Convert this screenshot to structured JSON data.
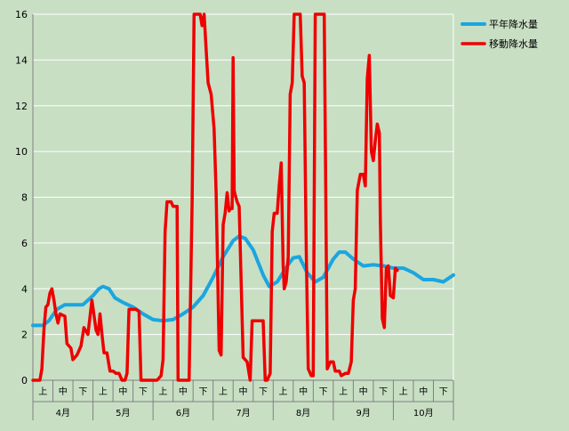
{
  "chart_data": {
    "type": "line",
    "ylim": [
      0,
      16
    ],
    "yticks": [
      0,
      2,
      4,
      6,
      8,
      10,
      12,
      14,
      16
    ],
    "grid": true,
    "legend_position": "top-right",
    "months": [
      "4月",
      "5月",
      "6月",
      "7月",
      "8月",
      "9月",
      "10月"
    ],
    "subperiods": [
      "上",
      "中",
      "下"
    ],
    "colors": {
      "background": "#c8dfc4",
      "grid": "#ffffff",
      "axis": "#808080"
    },
    "series": [
      {
        "name": "平年降水量",
        "color": "#1aa6e0",
        "values": [
          [
            0.0,
            2.4
          ],
          [
            0.5,
            2.4
          ],
          [
            0.8,
            2.6
          ],
          [
            1.2,
            3.1
          ],
          [
            1.6,
            3.3
          ],
          [
            2.0,
            3.3
          ],
          [
            2.5,
            3.3
          ],
          [
            3.0,
            3.7
          ],
          [
            3.3,
            4.0
          ],
          [
            3.5,
            4.1
          ],
          [
            3.8,
            4.0
          ],
          [
            4.1,
            3.6
          ],
          [
            4.5,
            3.4
          ],
          [
            5.0,
            3.2
          ],
          [
            5.5,
            2.9
          ],
          [
            6.0,
            2.65
          ],
          [
            6.5,
            2.6
          ],
          [
            7.0,
            2.65
          ],
          [
            7.5,
            2.9
          ],
          [
            8.0,
            3.2
          ],
          [
            8.5,
            3.7
          ],
          [
            9.0,
            4.5
          ],
          [
            9.5,
            5.4
          ],
          [
            10.0,
            6.1
          ],
          [
            10.3,
            6.3
          ],
          [
            10.6,
            6.2
          ],
          [
            11.0,
            5.7
          ],
          [
            11.5,
            4.6
          ],
          [
            11.8,
            4.1
          ],
          [
            12.2,
            4.3
          ],
          [
            12.7,
            5.0
          ],
          [
            13.0,
            5.35
          ],
          [
            13.3,
            5.4
          ],
          [
            13.7,
            4.7
          ],
          [
            14.1,
            4.3
          ],
          [
            14.5,
            4.5
          ],
          [
            15.0,
            5.3
          ],
          [
            15.3,
            5.6
          ],
          [
            15.6,
            5.6
          ],
          [
            16.0,
            5.3
          ],
          [
            16.5,
            5.0
          ],
          [
            17.0,
            5.05
          ],
          [
            17.5,
            5.0
          ],
          [
            18.0,
            4.9
          ],
          [
            18.5,
            4.9
          ],
          [
            19.0,
            4.7
          ],
          [
            19.5,
            4.4
          ],
          [
            20.0,
            4.4
          ],
          [
            20.5,
            4.3
          ],
          [
            21.0,
            4.6
          ]
        ]
      },
      {
        "name": "移動降水量",
        "color": "#ee0000",
        "values": [
          [
            0.0,
            0.0
          ],
          [
            0.35,
            0.0
          ],
          [
            0.45,
            0.5
          ],
          [
            0.55,
            2.2
          ],
          [
            0.65,
            3.2
          ],
          [
            0.75,
            3.3
          ],
          [
            0.85,
            3.8
          ],
          [
            0.95,
            4.0
          ],
          [
            1.05,
            3.5
          ],
          [
            1.15,
            2.9
          ],
          [
            1.25,
            2.5
          ],
          [
            1.35,
            2.9
          ],
          [
            1.6,
            2.8
          ],
          [
            1.7,
            1.6
          ],
          [
            1.9,
            1.4
          ],
          [
            2.0,
            0.9
          ],
          [
            2.2,
            1.1
          ],
          [
            2.4,
            1.5
          ],
          [
            2.55,
            2.3
          ],
          [
            2.75,
            2.0
          ],
          [
            2.95,
            3.5
          ],
          [
            3.15,
            2.2
          ],
          [
            3.25,
            2.0
          ],
          [
            3.35,
            2.9
          ],
          [
            3.45,
            2.0
          ],
          [
            3.55,
            1.2
          ],
          [
            3.7,
            1.2
          ],
          [
            3.85,
            0.4
          ],
          [
            4.0,
            0.4
          ],
          [
            4.15,
            0.3
          ],
          [
            4.3,
            0.3
          ],
          [
            4.45,
            0.0
          ],
          [
            4.6,
            0.0
          ],
          [
            4.7,
            0.3
          ],
          [
            4.8,
            3.1
          ],
          [
            5.15,
            3.1
          ],
          [
            5.3,
            3.0
          ],
          [
            5.4,
            0.0
          ],
          [
            6.2,
            0.0
          ],
          [
            6.4,
            0.2
          ],
          [
            6.5,
            0.9
          ],
          [
            6.6,
            6.5
          ],
          [
            6.7,
            7.8
          ],
          [
            6.9,
            7.8
          ],
          [
            7.0,
            7.6
          ],
          [
            7.2,
            7.6
          ],
          [
            7.25,
            0.0
          ],
          [
            7.5,
            0.0
          ],
          [
            7.8,
            0.0
          ],
          [
            7.95,
            7.8
          ],
          [
            8.05,
            16.0
          ],
          [
            8.35,
            16.0
          ],
          [
            8.45,
            15.5
          ],
          [
            8.55,
            16.0
          ],
          [
            8.65,
            14.5
          ],
          [
            8.75,
            13.0
          ],
          [
            8.9,
            12.5
          ],
          [
            9.05,
            11.0
          ],
          [
            9.15,
            8.2
          ],
          [
            9.3,
            1.3
          ],
          [
            9.4,
            1.1
          ],
          [
            9.5,
            6.8
          ],
          [
            9.6,
            7.3
          ],
          [
            9.7,
            8.2
          ],
          [
            9.8,
            7.4
          ],
          [
            9.85,
            7.5
          ],
          [
            9.95,
            7.5
          ],
          [
            10.0,
            14.1
          ],
          [
            10.05,
            8.3
          ],
          [
            10.1,
            8.1
          ],
          [
            10.2,
            7.8
          ],
          [
            10.3,
            7.6
          ],
          [
            10.5,
            1.0
          ],
          [
            10.7,
            0.8
          ],
          [
            10.85,
            0.0
          ],
          [
            10.95,
            2.6
          ],
          [
            11.2,
            2.6
          ],
          [
            11.5,
            2.6
          ],
          [
            11.6,
            0.0
          ],
          [
            11.7,
            0.0
          ],
          [
            11.85,
            0.3
          ],
          [
            11.95,
            6.5
          ],
          [
            12.05,
            7.3
          ],
          [
            12.2,
            7.3
          ],
          [
            12.3,
            8.5
          ],
          [
            12.4,
            9.5
          ],
          [
            12.5,
            5.0
          ],
          [
            12.55,
            4.0
          ],
          [
            12.65,
            4.3
          ],
          [
            12.75,
            5.4
          ],
          [
            12.85,
            12.5
          ],
          [
            12.95,
            13.0
          ],
          [
            13.05,
            16.0
          ],
          [
            13.2,
            16.0
          ],
          [
            13.35,
            16.0
          ],
          [
            13.45,
            13.3
          ],
          [
            13.55,
            13.0
          ],
          [
            13.65,
            5.6
          ],
          [
            13.75,
            0.5
          ],
          [
            13.9,
            0.2
          ],
          [
            14.0,
            0.2
          ],
          [
            14.1,
            16.0
          ],
          [
            14.2,
            16.0
          ],
          [
            14.45,
            16.0
          ],
          [
            14.55,
            16.0
          ],
          [
            14.7,
            0.5
          ],
          [
            14.85,
            0.8
          ],
          [
            15.0,
            0.8
          ],
          [
            15.1,
            0.4
          ],
          [
            15.3,
            0.4
          ],
          [
            15.4,
            0.2
          ],
          [
            15.6,
            0.3
          ],
          [
            15.75,
            0.3
          ],
          [
            15.9,
            0.8
          ],
          [
            16.0,
            3.5
          ],
          [
            16.1,
            4.0
          ],
          [
            16.2,
            8.3
          ],
          [
            16.35,
            9.0
          ],
          [
            16.5,
            9.0
          ],
          [
            16.6,
            8.5
          ],
          [
            16.7,
            13.2
          ],
          [
            16.8,
            14.2
          ],
          [
            16.9,
            10.0
          ],
          [
            17.0,
            9.6
          ],
          [
            17.1,
            10.5
          ],
          [
            17.2,
            11.2
          ],
          [
            17.3,
            10.8
          ],
          [
            17.35,
            7.0
          ],
          [
            17.45,
            2.7
          ],
          [
            17.55,
            2.3
          ],
          [
            17.65,
            4.9
          ],
          [
            17.75,
            5.0
          ],
          [
            17.85,
            3.7
          ],
          [
            18.0,
            3.6
          ],
          [
            18.1,
            4.9
          ],
          [
            18.2,
            4.8
          ]
        ]
      }
    ]
  }
}
